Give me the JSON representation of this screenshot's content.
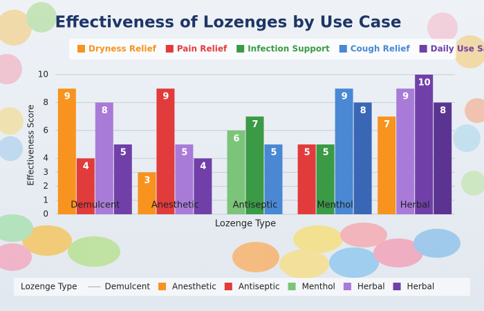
{
  "chart_data": {
    "type": "bar",
    "title": "Effectiveness of Lozenges by Use Case",
    "x_label": "Lozenge Type",
    "y_label": "Effectiveness Score",
    "categories": [
      "Demulcent",
      "Anesthetic",
      "Antiseptic",
      "Menthol",
      "Herbal"
    ],
    "series": [
      {
        "name": "Dryness Relief",
        "color": "#f7931e",
        "values": [
          9,
          3,
          null,
          null,
          7
        ]
      },
      {
        "name": "Pain Relief",
        "color": "#e23b3b",
        "values": [
          4,
          9,
          null,
          5,
          null
        ]
      },
      {
        "color": "#7cc47a",
        "values": [
          null,
          null,
          6,
          null,
          null
        ]
      },
      {
        "name": "Infection Support",
        "color": "#3b9a45",
        "values": [
          null,
          null,
          7,
          5,
          null
        ]
      },
      {
        "name": "Cough Relief",
        "color": "#4a88d4",
        "values": [
          null,
          null,
          5,
          9,
          null
        ]
      },
      {
        "color": "#3a66b6",
        "values": [
          null,
          null,
          null,
          8,
          null
        ]
      },
      {
        "color": "#a97bd8",
        "values": [
          8,
          5,
          null,
          null,
          9
        ]
      },
      {
        "name": "Daily Use Safety",
        "color": "#7040a8",
        "values": [
          5,
          4,
          null,
          null,
          10
        ]
      },
      {
        "color": "#5b3390",
        "values": [
          null,
          null,
          null,
          null,
          8
        ]
      }
    ],
    "ylim": [
      0,
      10
    ],
    "yticks": [
      0,
      1,
      2,
      3,
      4,
      6,
      8,
      10
    ],
    "grid": true,
    "legend": "top",
    "bottom_legend": {
      "title": "Lozenge Type",
      "items": [
        {
          "label": "Demulcent",
          "color": "#9aa6b8",
          "marker": "line"
        },
        {
          "label": "Anesthetic",
          "color": "#f7931e"
        },
        {
          "label": "Antiseptic",
          "color": "#e23b3b"
        },
        {
          "label": "Menthol",
          "color": "#7cc47a"
        },
        {
          "label": "Herbal",
          "color": "#a97bd8"
        },
        {
          "label": "Herbal",
          "color": "#7040a8"
        }
      ]
    }
  }
}
